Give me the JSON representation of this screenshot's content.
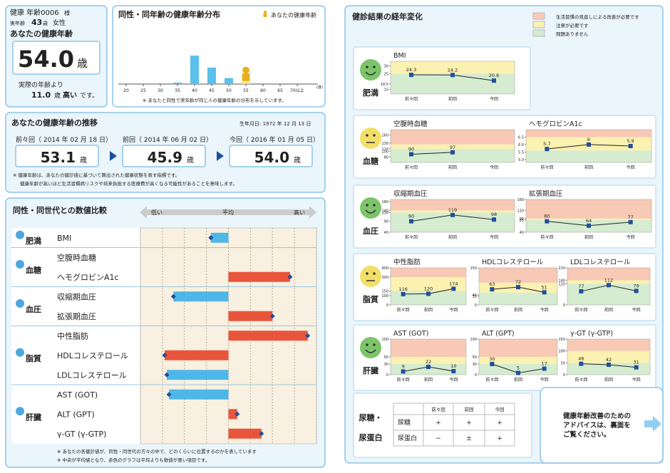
{
  "profile": {
    "name": "健康 年齢0006",
    "honorific": "様",
    "age_label": "実年齢",
    "age": "43",
    "age_unit": "歳",
    "sex": "女性",
    "heading": "あなたの健康年齢",
    "health_age": "54.0",
    "health_age_unit": "歳",
    "diff_prefix": "実際の年齢より",
    "diff": "11.0",
    "diff_unit": "歳",
    "diff_word": "高い",
    "diff_suffix": "です。"
  },
  "distribution": {
    "title": "同性・同年齢の健康年齢分布",
    "legend": "あなたの健康年齢",
    "categories": [
      "20",
      "25",
      "30",
      "35",
      "40",
      "45",
      "50",
      "55",
      "60",
      "65",
      "70以上"
    ],
    "unit": "(歳)",
    "values": [
      0,
      0,
      0,
      2,
      38,
      22,
      8,
      3,
      1,
      0,
      0
    ],
    "highlight_index": 7,
    "bar_color": "#5bc0eb",
    "highlight_color": "#f7e27a",
    "note": "※ あなたと同性で実年齢が同じ人の健康年齢の分布を示しています。"
  },
  "trend": {
    "title": "あなたの健康年齢の推移",
    "birth": "生年月日: 1972 年 12 月 13 日",
    "points": [
      {
        "label": "前々回（ 2014 年 02 月 18 日）",
        "value": "53.1",
        "unit": "歳"
      },
      {
        "label": "前回（ 2014 年 06 月 02 日）",
        "value": "45.9",
        "unit": "歳"
      },
      {
        "label": "今回（ 2016 年 01 月 05 日）",
        "value": "54.0",
        "unit": "歳"
      }
    ],
    "notes": [
      "※ 健康年齢は、あなたの健診値に基づいて算出された健康状態を表す指標です。",
      "健康年齢が高いほど生活習慣病リスクや将来負担する医療費が高くなる可能性があることを意味します。"
    ]
  },
  "comparison": {
    "title": "同性・同世代との数値比較",
    "scale": [
      "低い",
      "平均",
      "高い"
    ],
    "xlim": [
      -4,
      4
    ],
    "gridlines": [
      -4,
      -3,
      -2,
      -1,
      0,
      1,
      2,
      3,
      4
    ],
    "groups": [
      {
        "label": "肥満",
        "items": [
          {
            "name": "BMI",
            "value": -0.8,
            "color": "#4fb6e8"
          }
        ]
      },
      {
        "label": "血糖",
        "items": [
          {
            "name": "空腹時血糖",
            "value": null
          },
          {
            "name": "ヘモグロビンA1c",
            "value": 2.8,
            "color": "#e8553b"
          }
        ]
      },
      {
        "label": "血圧",
        "items": [
          {
            "name": "収縮期血圧",
            "value": -2.5,
            "color": "#4fb6e8"
          },
          {
            "name": "拡張期血圧",
            "value": 2.0,
            "color": "#e8553b"
          }
        ]
      },
      {
        "label": "脂質",
        "items": [
          {
            "name": "中性脂肪",
            "value": 3.6,
            "color": "#e8553b"
          },
          {
            "name": "HDLコレステロール",
            "value": -2.9,
            "color": "#e8553b"
          },
          {
            "name": "LDLコレステロール",
            "value": -2.8,
            "color": "#4fb6e8"
          }
        ]
      },
      {
        "label": "肝臓",
        "items": [
          {
            "name": "AST (GOT)",
            "value": -2.7,
            "color": "#4fb6e8"
          },
          {
            "name": "ALT (GPT)",
            "value": 0.4,
            "color": "#e8553b"
          },
          {
            "name": "γ-GT (γ-GTP)",
            "value": 1.5,
            "color": "#e8553b"
          }
        ]
      }
    ],
    "notes": [
      "※ あなたの各健診値が、同性・同世代の方々の中で、どのくらいに位置するのかを表しています",
      "※ 中央が平均値となり、赤色のグラフは平均よりも数値が悪い項目です。"
    ]
  },
  "results": {
    "title": "健診結果の経年変化",
    "legend": [
      {
        "text": "生活習慣の見直しによる改善が必要です",
        "color": "#f8c9b5"
      },
      {
        "text": "注意が必要です",
        "color": "#fbf1b0"
      },
      {
        "text": "問題ありません",
        "color": "#d5ecd0"
      }
    ],
    "periods": [
      "前々回",
      "前回",
      "今回"
    ],
    "groups": [
      {
        "label": "肥満",
        "face": "smile",
        "face_color": "#7cc46a",
        "charts": [
          {
            "name": "BMI",
            "ylim": [
              12,
              33
            ],
            "yticks": [
              15,
              18.5,
              25,
              30
            ],
            "bands": [
              {
                "from": 12,
                "to": 25,
                "color": "#d5ecd0"
              },
              {
                "from": 25,
                "to": 33,
                "color": "#fbf1b0"
              }
            ],
            "values": [
              24.3,
              24.2,
              20.6
            ]
          }
        ]
      },
      {
        "label": "血糖",
        "face": "neutral",
        "face_color": "#f2df6a",
        "charts": [
          {
            "name": "空腹時血糖",
            "ylim": [
              60,
              180
            ],
            "yticks": [
              80,
              100,
              110,
              130,
              160
            ],
            "bands": [
              {
                "from": 60,
                "to": 110,
                "color": "#d5ecd0"
              },
              {
                "from": 110,
                "to": 126,
                "color": "#fbf1b0"
              },
              {
                "from": 126,
                "to": 180,
                "color": "#f8c9b5"
              }
            ],
            "values": [
              90,
              97,
              null
            ]
          },
          {
            "name": "ヘモグロビンA1c",
            "ylim": [
              4.8,
              7
            ],
            "yticks": [
              {
                "value": 5,
                "label": "5.0"
              },
              5.5,
              {
                "value": 6,
                "label": "6.0"
              },
              6.5
            ],
            "bands": [
              {
                "from": 4.8,
                "to": 5.6,
                "color": "#d5ecd0"
              },
              {
                "from": 5.6,
                "to": 6.5,
                "color": "#fbf1b0"
              },
              {
                "from": 6.5,
                "to": 7,
                "color": "#f8c9b5"
              }
            ],
            "values": [
              5.7,
              6,
              5.9
            ]
          }
        ]
      },
      {
        "label": "血圧",
        "face": "smile",
        "face_color": "#7cc46a",
        "charts": [
          {
            "name": "収縮期血圧",
            "ylim": [
              40,
              190
            ],
            "yticks": [
              40,
              90,
              130,
              140,
              180
            ],
            "bands": [
              {
                "from": 40,
                "to": 130,
                "color": "#d5ecd0"
              },
              {
                "from": 130,
                "to": 140,
                "color": "#fbf1b0"
              },
              {
                "from": 140,
                "to": 190,
                "color": "#f8c9b5"
              }
            ],
            "values": [
              90,
              119,
              98
            ]
          },
          {
            "name": "拡張期血圧",
            "ylim": [
              40,
              160
            ],
            "yticks": [
              40,
              85,
              90,
              120,
              160
            ],
            "bands": [
              {
                "from": 40,
                "to": 85,
                "color": "#d5ecd0"
              },
              {
                "from": 85,
                "to": 90,
                "color": "#fbf1b0"
              },
              {
                "from": 90,
                "to": 160,
                "color": "#f8c9b5"
              }
            ],
            "values": [
              80,
              64,
              77
            ]
          }
        ]
      },
      {
        "label": "脂質",
        "face": "neutral",
        "face_color": "#f2df6a",
        "charts": [
          {
            "name": "中性脂肪",
            "ylim": [
              0,
              400
            ],
            "yticks": [
              0,
              100,
              150,
              300,
              400
            ],
            "bands": [
              {
                "from": 0,
                "to": 150,
                "color": "#d5ecd0"
              },
              {
                "from": 150,
                "to": 300,
                "color": "#fbf1b0"
              },
              {
                "from": 300,
                "to": 400,
                "color": "#f8c9b5"
              }
            ],
            "values": [
              116,
              120,
              174
            ]
          },
          {
            "name": "HDLコレステロール",
            "ylim": [
              0,
              150
            ],
            "yticks": [
              0,
              35,
              40,
              150
            ],
            "bands": [
              {
                "from": 0,
                "to": 50,
                "color": "#d5ecd0"
              },
              {
                "from": 50,
                "to": 90,
                "color": "#fbf1b0"
              },
              {
                "from": 90,
                "to": 150,
                "color": "#f8c9b5"
              }
            ],
            "values": [
              63,
              72,
              51
            ]
          },
          {
            "name": "LDLコレステロール",
            "ylim": [
              0,
              210
            ],
            "yticks": [
              0,
              120,
              140,
              210
            ],
            "bands": [
              {
                "from": 0,
                "to": 120,
                "color": "#d5ecd0"
              },
              {
                "from": 120,
                "to": 140,
                "color": "#fbf1b0"
              },
              {
                "from": 140,
                "to": 210,
                "color": "#f8c9b5"
              }
            ],
            "values": [
              77,
              112,
              79
            ]
          }
        ]
      },
      {
        "label": "肝臓",
        "face": "smile",
        "face_color": "#7cc46a",
        "charts": [
          {
            "name": "AST (GOT)",
            "ylim": [
              0,
              100
            ],
            "yticks": [
              0,
              30,
              50,
              100
            ],
            "bands": [
              {
                "from": 0,
                "to": 30,
                "color": "#d5ecd0"
              },
              {
                "from": 30,
                "to": 50,
                "color": "#fbf1b0"
              },
              {
                "from": 50,
                "to": 100,
                "color": "#f8c9b5"
              }
            ],
            "values": [
              9,
              22,
              10
            ]
          },
          {
            "name": "ALT (GPT)",
            "ylim": [
              0,
              100
            ],
            "yticks": [
              0,
              30,
              50,
              100
            ],
            "bands": [
              {
                "from": 0,
                "to": 30,
                "color": "#d5ecd0"
              },
              {
                "from": 30,
                "to": 50,
                "color": "#fbf1b0"
              },
              {
                "from": 50,
                "to": 100,
                "color": "#f8c9b5"
              }
            ],
            "values": [
              30,
              5,
              17
            ]
          },
          {
            "name": "γ-GT (γ-GTP)",
            "ylim": [
              0,
              150
            ],
            "yticks": [
              0,
              50,
              100,
              150
            ],
            "bands": [
              {
                "from": 0,
                "to": 50,
                "color": "#d5ecd0"
              },
              {
                "from": 50,
                "to": 100,
                "color": "#fbf1b0"
              },
              {
                "from": 100,
                "to": 150,
                "color": "#f8c9b5"
              }
            ],
            "values": [
              46,
              42,
              31
            ]
          }
        ]
      }
    ],
    "urine": {
      "title": [
        "尿糖・",
        "尿蛋白"
      ],
      "rows": [
        {
          "name": "尿糖",
          "values": [
            "+",
            "+",
            "+"
          ]
        },
        {
          "name": "尿蛋白",
          "values": [
            "−",
            "±",
            "+"
          ]
        }
      ]
    }
  },
  "advice": {
    "lines": [
      "健康年齢改善のための",
      "アドバイスは、裏面を",
      "ご覧ください。"
    ]
  }
}
